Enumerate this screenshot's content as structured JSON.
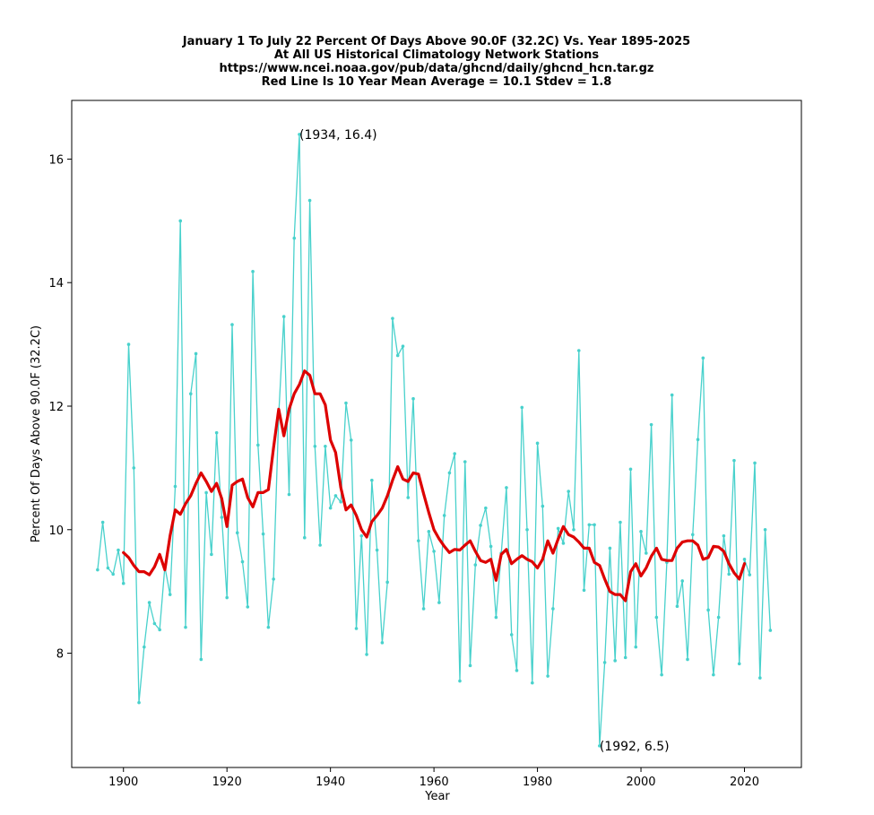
{
  "chart_data": {
    "type": "line",
    "title_lines": [
      "January 1 To July 22 Percent Of Days Above 90.0F (32.2C) Vs. Year 1895-2025",
      "At All US Historical Climatology Network Stations",
      "https://www.ncei.noaa.gov/pub/data/ghcnd/daily/ghcnd_hcn.tar.gz",
      "Red Line Is 10 Year Mean  Average = 10.1 Stdev = 1.8"
    ],
    "xlabel": "Year",
    "ylabel": "Percent Of Days Above 90.0F (32.2C)",
    "xlim": [
      1890,
      2031
    ],
    "ylim": [
      6.15,
      16.95
    ],
    "x_ticks": [
      1900,
      1920,
      1940,
      1960,
      1980,
      2000,
      2020
    ],
    "y_ticks": [
      8,
      10,
      12,
      14,
      16
    ],
    "grid": false,
    "colors": {
      "annual": "#48d1cc",
      "mean": "#dd0000"
    },
    "series": [
      {
        "x": [
          1895,
          1896,
          1897,
          1898,
          1899,
          1900,
          1901,
          1902,
          1903,
          1904,
          1905,
          1906,
          1907,
          1908,
          1909,
          1910,
          1911,
          1912,
          1913,
          1914,
          1915,
          1916,
          1917,
          1918,
          1919,
          1920,
          1921,
          1922,
          1923,
          1924,
          1925,
          1926,
          1927,
          1928,
          1929,
          1930,
          1931,
          1932,
          1933,
          1934,
          1935,
          1936,
          1937,
          1938,
          1939,
          1940,
          1941,
          1942,
          1943,
          1944,
          1945,
          1946,
          1947,
          1948,
          1949,
          1950,
          1951,
          1952,
          1953,
          1954,
          1955,
          1956,
          1957,
          1958,
          1959,
          1960,
          1961,
          1962,
          1963,
          1964,
          1965,
          1966,
          1967,
          1968,
          1969,
          1970,
          1971,
          1972,
          1973,
          1974,
          1975,
          1976,
          1977,
          1978,
          1979,
          1980,
          1981,
          1982,
          1983,
          1984,
          1985,
          1986,
          1987,
          1988,
          1989,
          1990,
          1991,
          1992,
          1993,
          1994,
          1995,
          1996,
          1997,
          1998,
          1999,
          2000,
          2001,
          2002,
          2003,
          2004,
          2005,
          2006,
          2007,
          2008,
          2009,
          2010,
          2011,
          2012,
          2013,
          2014,
          2015,
          2016,
          2017,
          2018,
          2019,
          2020,
          2021,
          2022,
          2023,
          2024,
          2025
        ],
        "values": [
          9.35,
          10.12,
          9.38,
          9.28,
          9.67,
          9.13,
          13.0,
          11.0,
          7.2,
          8.1,
          8.82,
          8.48,
          8.38,
          9.4,
          8.95,
          10.7,
          15.0,
          8.42,
          12.2,
          12.85,
          7.9,
          10.6,
          9.6,
          11.57,
          10.2,
          8.9,
          13.32,
          9.95,
          9.48,
          8.75,
          14.18,
          11.37,
          9.93,
          8.42,
          9.2,
          11.85,
          13.45,
          10.57,
          14.72,
          16.4,
          9.87,
          15.33,
          11.35,
          9.75,
          11.35,
          10.35,
          10.55,
          10.45,
          12.05,
          11.45,
          8.4,
          9.9,
          7.98,
          10.8,
          9.67,
          8.17,
          9.15,
          13.42,
          12.82,
          12.97,
          10.52,
          12.12,
          9.82,
          8.72,
          9.97,
          9.65,
          8.82,
          10.23,
          10.92,
          11.23,
          7.55,
          11.1,
          7.8,
          9.43,
          10.07,
          10.35,
          9.73,
          8.58,
          9.62,
          10.68,
          8.3,
          7.72,
          11.98,
          10.0,
          7.52,
          11.4,
          10.38,
          7.63,
          8.72,
          10.02,
          9.78,
          10.62,
          10.0,
          12.9,
          9.02,
          10.08,
          10.08,
          6.5,
          7.85,
          9.7,
          7.88,
          10.12,
          7.93,
          10.98,
          8.1,
          9.97,
          9.62,
          11.7,
          8.58,
          7.65,
          9.47,
          12.18,
          8.76,
          9.17,
          7.9,
          9.92,
          11.46,
          12.78,
          8.7,
          7.65,
          8.58,
          9.9,
          9.28,
          11.12,
          7.83,
          9.52,
          9.27,
          11.08,
          7.6,
          10.0,
          8.37
        ]
      },
      {
        "x": [
          1900,
          1901,
          1902,
          1903,
          1904,
          1905,
          1906,
          1907,
          1908,
          1909,
          1910,
          1911,
          1912,
          1913,
          1914,
          1915,
          1916,
          1917,
          1918,
          1919,
          1920,
          1921,
          1922,
          1923,
          1924,
          1925,
          1926,
          1927,
          1928,
          1929,
          1930,
          1931,
          1932,
          1933,
          1934,
          1935,
          1936,
          1937,
          1938,
          1939,
          1940,
          1941,
          1942,
          1943,
          1944,
          1945,
          1946,
          1947,
          1948,
          1949,
          1950,
          1951,
          1952,
          1953,
          1954,
          1955,
          1956,
          1957,
          1958,
          1959,
          1960,
          1961,
          1962,
          1963,
          1964,
          1965,
          1966,
          1967,
          1968,
          1969,
          1970,
          1971,
          1972,
          1973,
          1974,
          1975,
          1976,
          1977,
          1978,
          1979,
          1980,
          1981,
          1982,
          1983,
          1984,
          1985,
          1986,
          1987,
          1988,
          1989,
          1990,
          1991,
          1992,
          1993,
          1994,
          1995,
          1996,
          1997,
          1998,
          1999,
          2000,
          2001,
          2002,
          2003,
          2004,
          2005,
          2006,
          2007,
          2008,
          2009,
          2010,
          2011,
          2012,
          2013,
          2014,
          2015,
          2016,
          2017,
          2018,
          2019,
          2020
        ],
        "values": [
          9.63,
          9.55,
          9.42,
          9.32,
          9.32,
          9.27,
          9.4,
          9.6,
          9.35,
          9.9,
          10.32,
          10.25,
          10.42,
          10.55,
          10.75,
          10.92,
          10.78,
          10.62,
          10.75,
          10.5,
          10.05,
          10.72,
          10.78,
          10.82,
          10.52,
          10.37,
          10.6,
          10.6,
          10.65,
          11.32,
          11.95,
          11.52,
          11.95,
          12.2,
          12.35,
          12.57,
          12.5,
          12.2,
          12.2,
          12.02,
          11.45,
          11.25,
          10.68,
          10.32,
          10.4,
          10.23,
          10.0,
          9.88,
          10.13,
          10.23,
          10.35,
          10.55,
          10.8,
          11.02,
          10.82,
          10.78,
          10.92,
          10.9,
          10.58,
          10.28,
          10.0,
          9.85,
          9.73,
          9.63,
          9.68,
          9.67,
          9.75,
          9.82,
          9.65,
          9.5,
          9.47,
          9.52,
          9.18,
          9.6,
          9.68,
          9.45,
          9.52,
          9.58,
          9.52,
          9.48,
          9.38,
          9.52,
          9.82,
          9.62,
          9.85,
          10.05,
          9.92,
          9.88,
          9.8,
          9.7,
          9.7,
          9.47,
          9.42,
          9.2,
          9.0,
          8.95,
          8.95,
          8.85,
          9.32,
          9.45,
          9.25,
          9.38,
          9.57,
          9.7,
          9.52,
          9.5,
          9.5,
          9.7,
          9.8,
          9.82,
          9.82,
          9.75,
          9.52,
          9.55,
          9.73,
          9.72,
          9.65,
          9.45,
          9.3,
          9.2,
          9.45
        ]
      }
    ],
    "annotations": [
      {
        "label": "(1934, 16.4)",
        "x": 1934,
        "y": 16.4
      },
      {
        "label": "(1992, 6.5)",
        "x": 1992,
        "y": 6.5
      }
    ]
  }
}
